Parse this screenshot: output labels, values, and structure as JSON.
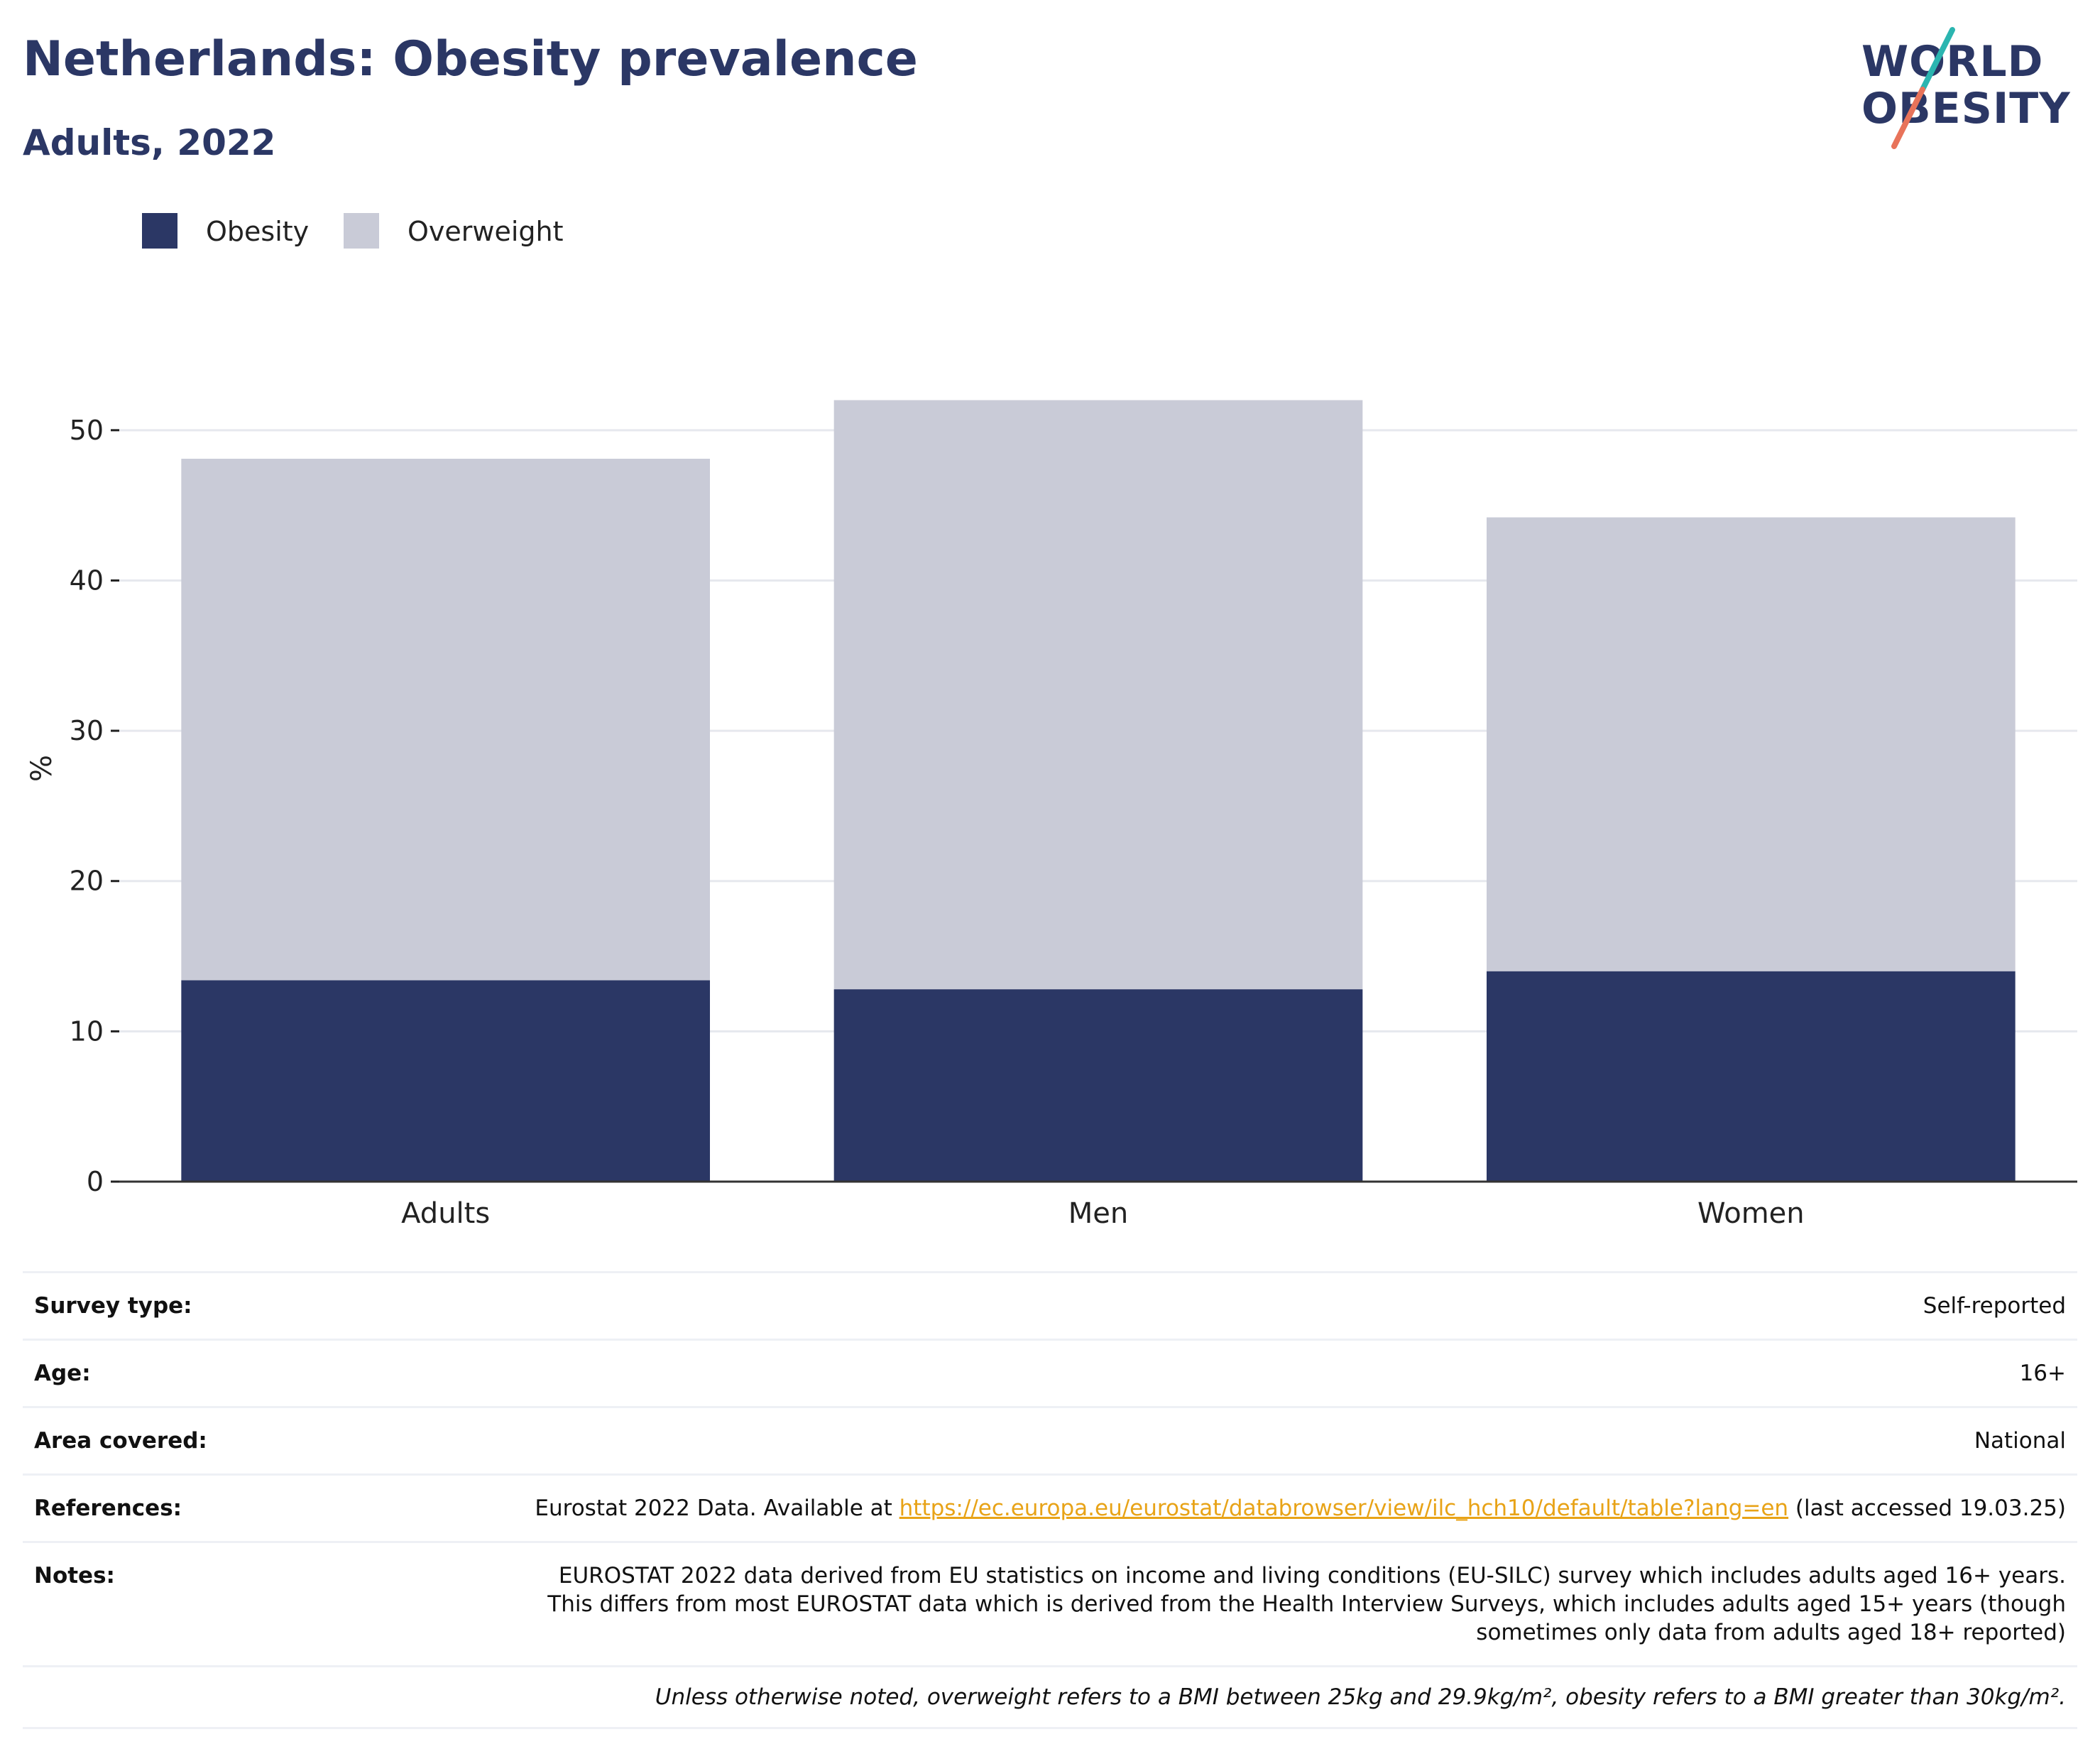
{
  "header": {
    "title": "Netherlands: Obesity prevalence",
    "subtitle": "Adults, 2022"
  },
  "logo": {
    "line1": "WORLD",
    "line2": "OBESITY",
    "text_color": "#2b3765",
    "slash_top_color": "#2bb5b0",
    "slash_bottom_color": "#e8735a"
  },
  "legend": [
    {
      "label": "Obesity",
      "color": "#2b3765"
    },
    {
      "label": "Overweight",
      "color": "#c9cbd7"
    }
  ],
  "chart_data": {
    "type": "bar",
    "stacked": true,
    "categories": [
      "Adults",
      "Men",
      "Women"
    ],
    "series": [
      {
        "name": "Obesity",
        "color": "#2b3765",
        "values": [
          13.4,
          12.8,
          14.0
        ]
      },
      {
        "name": "Overweight",
        "color": "#c9cbd7",
        "values": [
          34.7,
          39.2,
          30.2
        ]
      }
    ],
    "ylabel": "%",
    "ylim": [
      0,
      55
    ],
    "yticks": [
      0,
      10,
      20,
      30,
      40,
      50
    ],
    "grid": true,
    "legend_position": "top-left"
  },
  "info": {
    "rows": [
      {
        "label": "Survey type:",
        "value": "Self-reported"
      },
      {
        "label": "Age:",
        "value": "16+"
      },
      {
        "label": "Area covered:",
        "value": "National"
      }
    ],
    "references": {
      "label": "References:",
      "prefix": "Eurostat 2022 Data. Available at ",
      "link": "https://ec.europa.eu/eurostat/databrowser/view/ilc_hch10/default/table?lang=en",
      "suffix": " (last accessed 19.03.25)"
    },
    "notes": {
      "label": "Notes:",
      "value": "EUROSTAT 2022 data derived from EU statistics on income and living conditions (EU-SILC) survey which includes adults aged 16+ years. This differs from most EUROSTAT data which is derived from the Health Interview Surveys, which includes adults aged 15+ years (though sometimes only data from adults aged 18+ reported)"
    },
    "footnote": "Unless otherwise noted, overweight refers to a BMI between 25kg and 29.9kg/m², obesity refers to a BMI greater than 30kg/m²."
  }
}
